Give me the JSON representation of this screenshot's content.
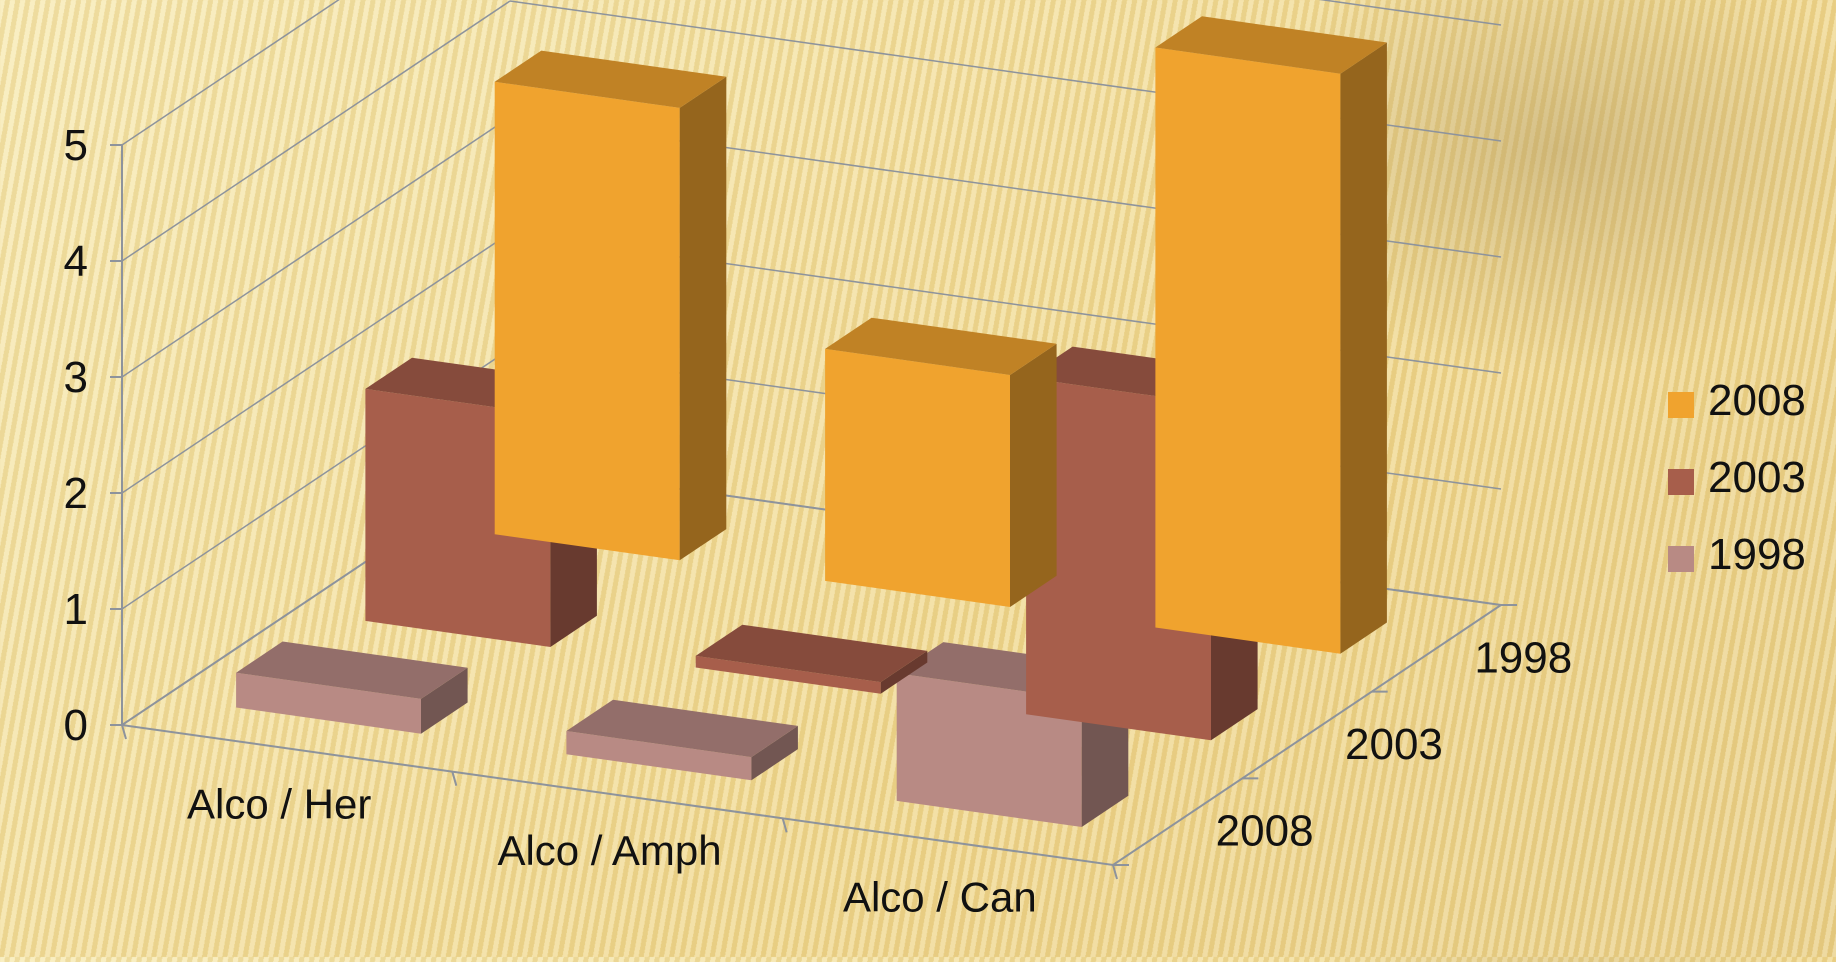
{
  "chart_data": {
    "type": "bar",
    "categories": [
      "Alco / Her",
      "Alco / Amph",
      "Alco / Can"
    ],
    "series": [
      {
        "name": "2008",
        "values": [
          3.9,
          2.0,
          5.0
        ],
        "color": "#f0a32e"
      },
      {
        "name": "2003",
        "values": [
          2.0,
          0.1,
          2.9
        ],
        "color": "#a75e4b"
      },
      {
        "name": "1998",
        "values": [
          0.3,
          0.2,
          1.1
        ],
        "color": "#b88a84"
      }
    ],
    "depth_labels": [
      "1998",
      "2003",
      "2008"
    ],
    "yticks": [
      "0",
      "1",
      "2",
      "3",
      "4",
      "5"
    ],
    "ylim": [
      0,
      5
    ],
    "legend_position": "right",
    "grid": true,
    "style": "3d-column"
  }
}
